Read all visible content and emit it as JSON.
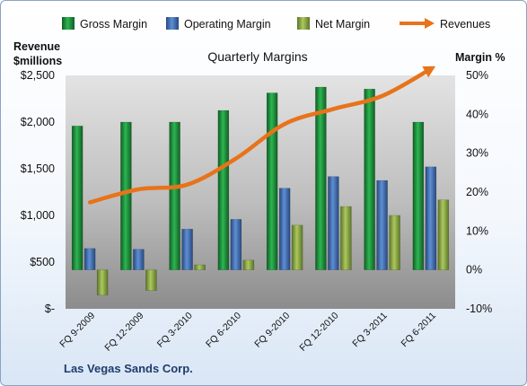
{
  "chart_data": {
    "type": "bar",
    "title": "Quarterly Margins",
    "categories": [
      "FQ 9-2009",
      "FQ 12-2009",
      "FQ 3-2010",
      "FQ 6-2010",
      "FQ 9-2010",
      "FQ 12-2010",
      "FQ 3-2011",
      "FQ 6-2011"
    ],
    "series": [
      {
        "name": "Gross Margin",
        "axis": "right",
        "kind": "bar",
        "color": "#1e8a3a",
        "values": [
          37,
          38,
          38,
          41,
          45.5,
          47,
          46.5,
          38
        ]
      },
      {
        "name": "Operating Margin",
        "axis": "right",
        "kind": "bar",
        "color": "#3f6fb4",
        "values": [
          5.5,
          5.3,
          10.5,
          13,
          21,
          24,
          23,
          26.5
        ]
      },
      {
        "name": "Net Margin",
        "axis": "right",
        "kind": "bar",
        "color": "#8fae44",
        "values": [
          -6.5,
          -5.3,
          1.3,
          2.5,
          11.5,
          16.3,
          14,
          18
        ]
      },
      {
        "name": "Revenues",
        "axis": "left",
        "kind": "line",
        "color": "#e8731a",
        "values": [
          1140,
          1280,
          1330,
          1610,
          1980,
          2140,
          2280,
          2570
        ]
      }
    ],
    "y_left": {
      "label_line1": "Revenue",
      "label_line2": "$millions",
      "ticks": [
        0,
        500,
        1000,
        1500,
        2000,
        2500
      ],
      "tick_labels": [
        "$-",
        "$500",
        "$1,000",
        "$1,500",
        "$2,000",
        "$2,500"
      ],
      "ylim": [
        0,
        2500
      ]
    },
    "y_right": {
      "label": "Margin %",
      "ticks": [
        -10,
        0,
        10,
        20,
        30,
        40,
        50
      ],
      "tick_labels": [
        "-10%",
        "0%",
        "10%",
        "20%",
        "30%",
        "40%",
        "50%"
      ],
      "ylim": [
        -10,
        50
      ]
    },
    "legend_position": "top",
    "grid": false,
    "footer": "Las Vegas Sands Corp."
  }
}
